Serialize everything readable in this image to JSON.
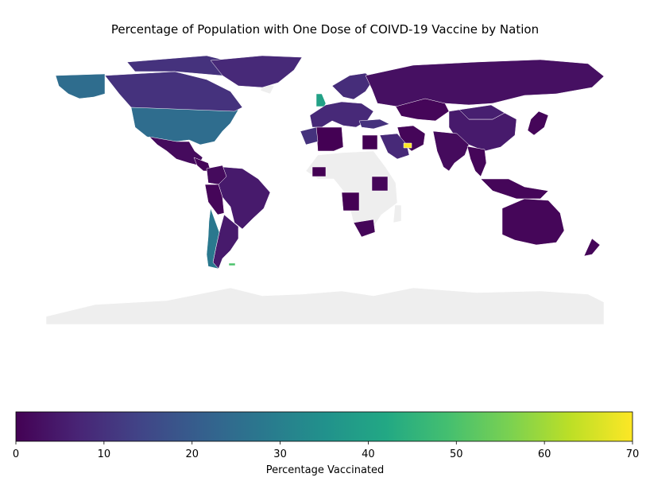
{
  "title": "Percentage of Population with One Dose of COIVD-19 Vaccine by Nation",
  "colorbar": {
    "label": "Percentage Vaccinated",
    "ticks": [
      "0",
      "10",
      "20",
      "30",
      "40",
      "50",
      "60",
      "70"
    ],
    "min": 0,
    "max": 70,
    "colormap": "viridis"
  },
  "colors": {
    "no_data": "#eeeeee",
    "border": "#ffffff"
  },
  "chart_data": {
    "type": "choropleth",
    "title": "Percentage of Population with One Dose of COIVD-19 Vaccine by Nation",
    "value_range": [
      0,
      70
    ],
    "regions": [
      {
        "name": "United States",
        "value": 25
      },
      {
        "name": "Canada",
        "value": 10
      },
      {
        "name": "Alaska",
        "value": 25
      },
      {
        "name": "Greenland",
        "value": 8
      },
      {
        "name": "Mexico",
        "value": 2
      },
      {
        "name": "Central America",
        "value": 1
      },
      {
        "name": "Brazil",
        "value": 5
      },
      {
        "name": "Colombia",
        "value": 2
      },
      {
        "name": "Peru",
        "value": 1
      },
      {
        "name": "Argentina",
        "value": 5
      },
      {
        "name": "Chile",
        "value": 28
      },
      {
        "name": "Falkland Islands",
        "value": 50
      },
      {
        "name": "United Kingdom",
        "value": 40
      },
      {
        "name": "Europe",
        "value": 8
      },
      {
        "name": "Scandinavia",
        "value": 9
      },
      {
        "name": "Russia",
        "value": 3
      },
      {
        "name": "Kazakhstan",
        "value": 1
      },
      {
        "name": "China",
        "value": 5
      },
      {
        "name": "Mongolia",
        "value": 6
      },
      {
        "name": "Japan",
        "value": 1
      },
      {
        "name": "India",
        "value": 2
      },
      {
        "name": "Southeast Asia",
        "value": 1
      },
      {
        "name": "Indonesia",
        "value": 1
      },
      {
        "name": "Turkey",
        "value": 10
      },
      {
        "name": "Iran",
        "value": 1
      },
      {
        "name": "Saudi Arabia",
        "value": 8
      },
      {
        "name": "United Arab Emirates",
        "value": 70
      },
      {
        "name": "Algeria",
        "value": 0
      },
      {
        "name": "Morocco",
        "value": 10
      },
      {
        "name": "Egypt",
        "value": 0
      },
      {
        "name": "Nigeria",
        "value": 0
      },
      {
        "name": "Angola",
        "value": 0
      },
      {
        "name": "Kenya",
        "value": 1
      },
      {
        "name": "South Africa",
        "value": 1
      },
      {
        "name": "Australia",
        "value": 1
      },
      {
        "name": "New Zealand",
        "value": 1
      }
    ]
  }
}
